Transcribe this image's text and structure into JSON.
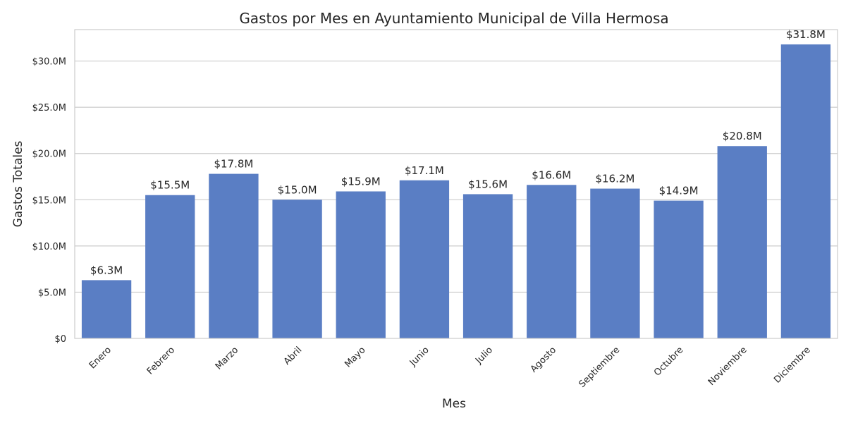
{
  "chart_data": {
    "type": "bar",
    "title": "Gastos por Mes en Ayuntamiento Municipal de Villa Hermosa",
    "xlabel": "Mes",
    "ylabel": "Gastos Totales",
    "categories": [
      "Enero",
      "Febrero",
      "Marzo",
      "Abril",
      "Mayo",
      "Junio",
      "Julio",
      "Agosto",
      "Septiembre",
      "Octubre",
      "Noviembre",
      "Diciembre"
    ],
    "values": [
      6.3,
      15.5,
      17.8,
      15.0,
      15.9,
      17.1,
      15.6,
      16.6,
      16.2,
      14.9,
      20.8,
      31.8
    ],
    "value_labels": [
      "$6.3M",
      "$15.5M",
      "$17.8M",
      "$15.0M",
      "$15.9M",
      "$17.1M",
      "$15.6M",
      "$16.6M",
      "$16.2M",
      "$14.9M",
      "$20.8M",
      "$31.8M"
    ],
    "unit": "millions USD",
    "yticks": [
      0,
      5,
      10,
      15,
      20,
      25,
      30
    ],
    "ytick_labels": [
      "$0",
      "$5.0M",
      "$10.0M",
      "$15.0M",
      "$20.0M",
      "$25.0M",
      "$30.0M"
    ],
    "ylim": [
      0,
      33.4
    ],
    "grid": true,
    "bar_color": "#5a7ec4"
  }
}
